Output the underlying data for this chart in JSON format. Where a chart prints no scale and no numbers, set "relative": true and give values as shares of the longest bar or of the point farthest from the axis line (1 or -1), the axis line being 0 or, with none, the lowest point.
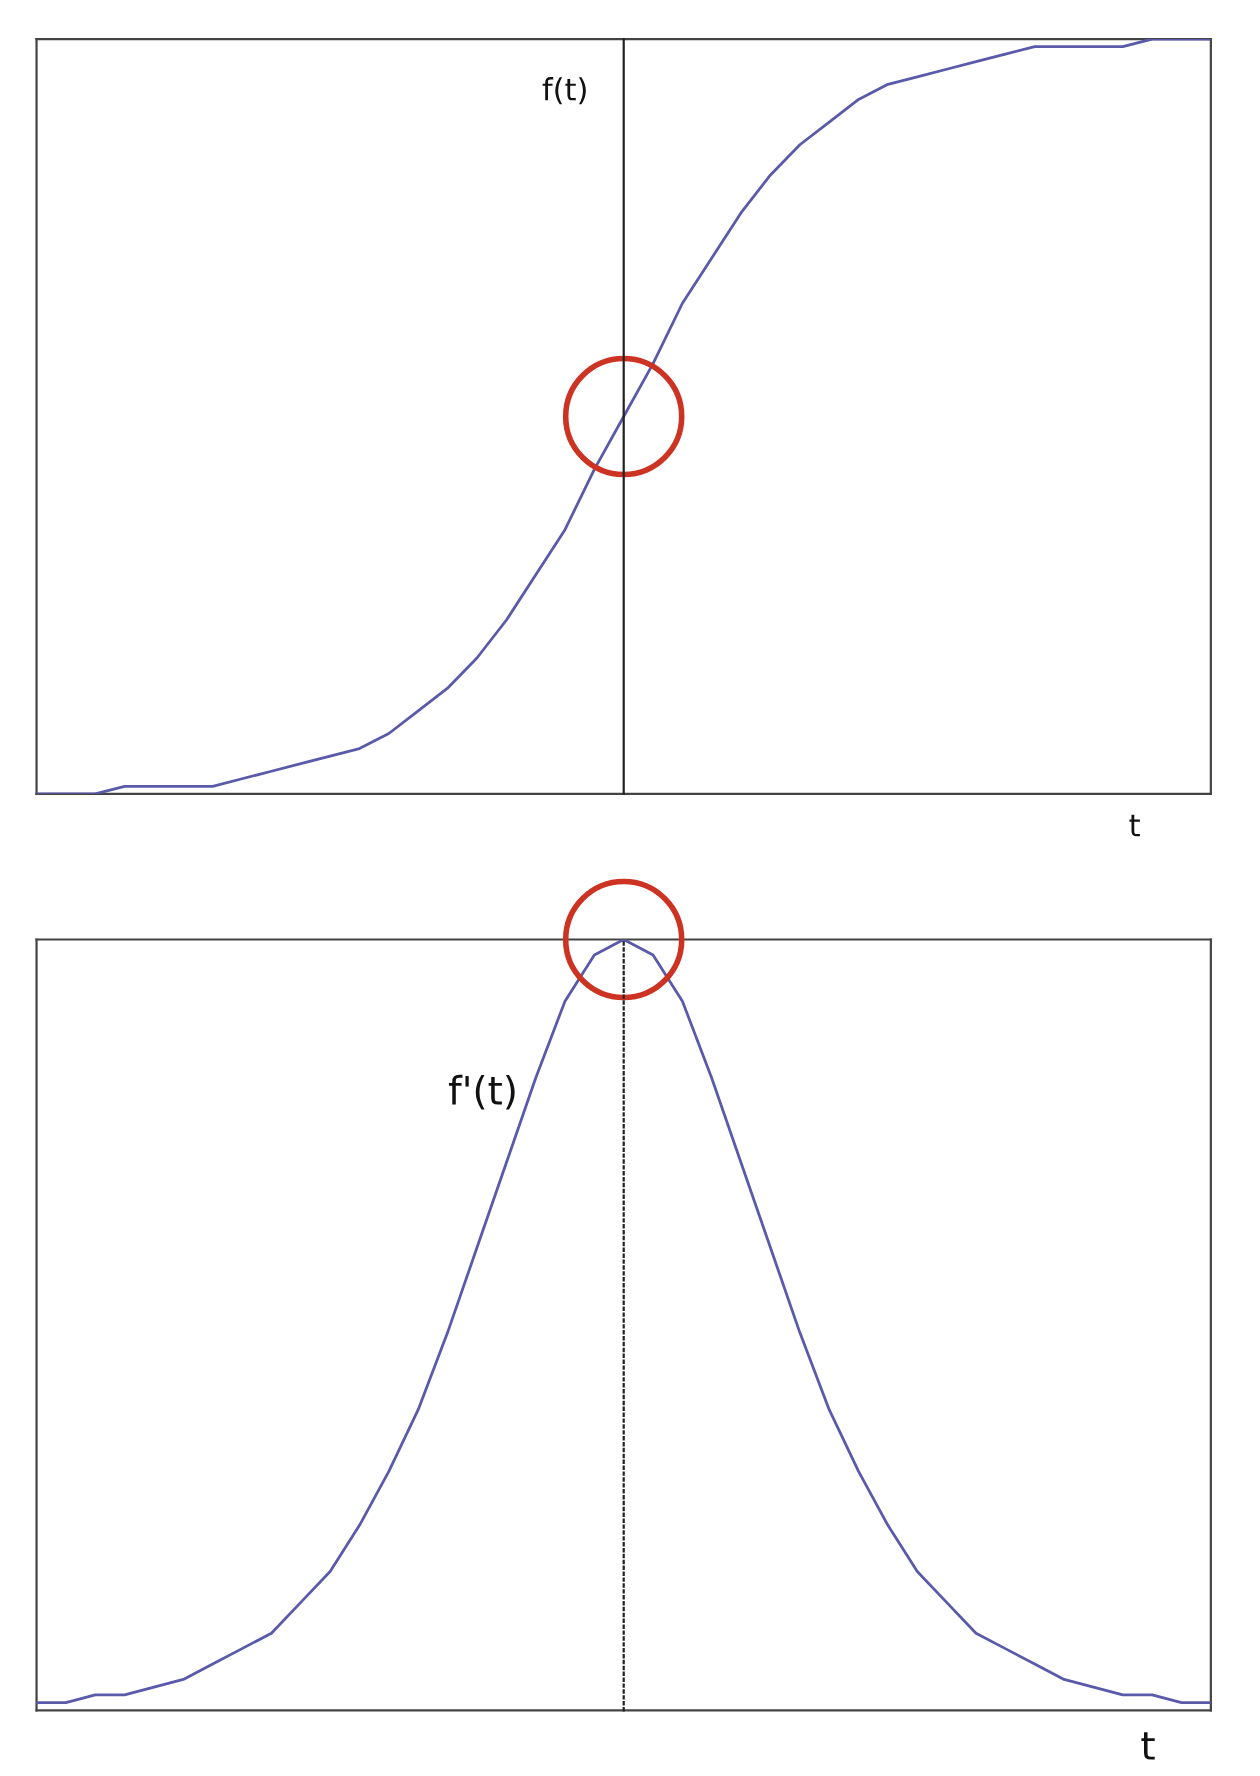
{
  "chart_data": [
    {
      "type": "line",
      "relative": true,
      "categories": [
        null,
        null,
        null,
        null,
        null,
        null,
        null,
        null,
        null,
        null,
        null,
        null,
        null,
        null,
        null,
        null,
        null,
        null,
        null,
        null,
        null,
        null,
        null,
        null,
        null,
        null,
        null,
        null,
        null,
        null,
        null,
        null,
        null,
        null,
        null,
        null,
        null,
        null,
        null,
        null,
        null
      ],
      "series": [
        {
          "color": "#5a5aaa",
          "values": [
            0,
            0,
            0,
            0.01,
            0.01,
            0.01,
            0.01,
            0.02,
            0.03,
            0.04,
            0.05,
            0.06,
            0.08,
            0.11,
            0.14,
            0.18,
            0.23,
            0.29,
            0.35,
            0.43,
            0.5,
            0.57,
            0.65,
            0.71,
            0.77,
            0.82,
            0.86,
            0.89,
            0.92,
            0.94,
            0.95,
            0.96,
            0.97,
            0.98,
            0.99,
            0.99,
            0.99,
            0.99,
            1,
            1,
            1
          ]
        }
      ],
      "annotations": [
        "f(t)",
        "t"
      ]
    },
    {
      "type": "line",
      "relative": true,
      "categories": [
        null,
        null,
        null,
        null,
        null,
        null,
        null,
        null,
        null,
        null,
        null,
        null,
        null,
        null,
        null,
        null,
        null,
        null,
        null,
        null,
        null,
        null,
        null,
        null,
        null,
        null,
        null,
        null,
        null,
        null,
        null,
        null,
        null,
        null,
        null,
        null,
        null,
        null,
        null,
        null,
        null
      ],
      "series": [
        {
          "color": "#5a5aaa",
          "values": [
            0.01,
            0.01,
            0.02,
            0.02,
            0.03,
            0.04,
            0.06,
            0.08,
            0.1,
            0.14,
            0.18,
            0.24,
            0.31,
            0.39,
            0.49,
            0.6,
            0.71,
            0.82,
            0.92,
            0.98,
            1,
            0.98,
            0.92,
            0.82,
            0.71,
            0.6,
            0.49,
            0.39,
            0.31,
            0.24,
            0.18,
            0.14,
            0.1,
            0.08,
            0.06,
            0.04,
            0.03,
            0.02,
            0.02,
            0.01,
            0.01
          ]
        }
      ],
      "annotations": [
        "f'(t)",
        "t"
      ]
    }
  ]
}
